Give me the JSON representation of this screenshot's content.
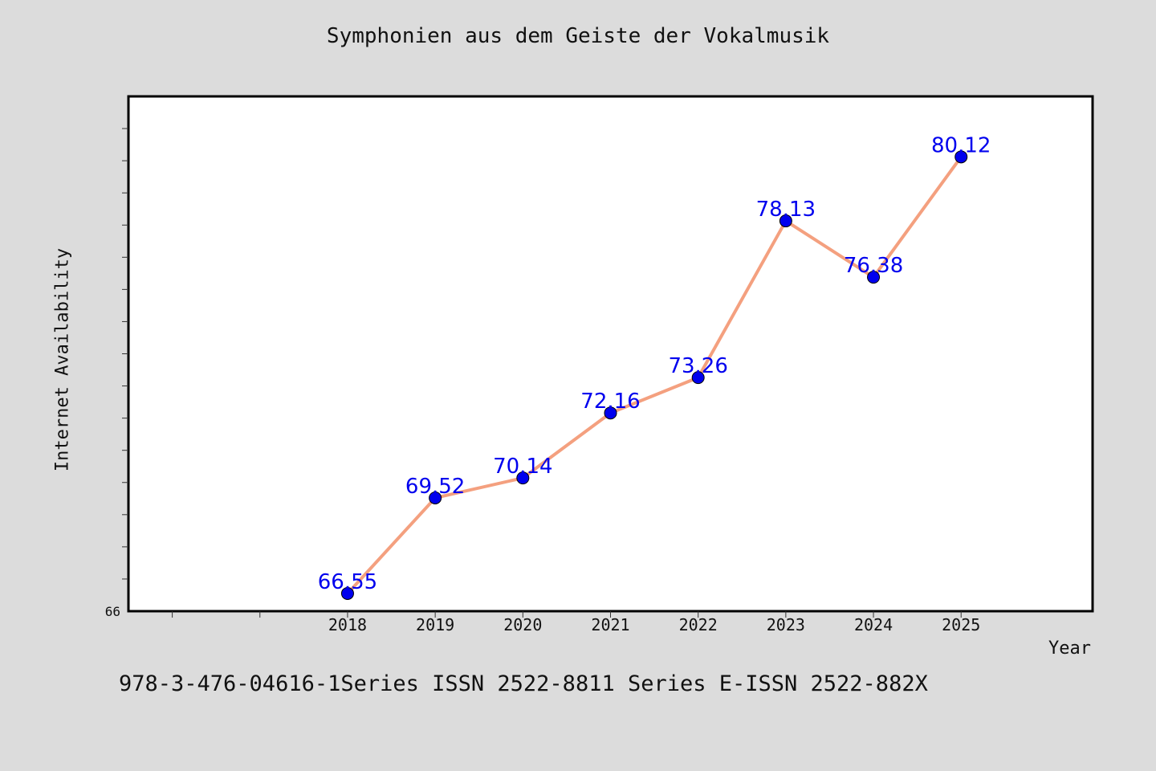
{
  "chart_data": {
    "type": "line",
    "title": "Symphonien aus dem Geiste der Vokalmusik",
    "xlabel": "Year",
    "ylabel": "Internet Availability",
    "x": [
      2018,
      2019,
      2020,
      2021,
      2022,
      2023,
      2024,
      2025
    ],
    "x_tick_labels": [
      "2018",
      "2019",
      "2020",
      "2021",
      "2022",
      "2023",
      "2024",
      "2025"
    ],
    "xlim": [
      2015.5,
      2026.5
    ],
    "y": [
      66.55,
      69.52,
      70.14,
      72.16,
      73.26,
      78.13,
      76.38,
      80.12
    ],
    "y_point_labels": [
      "66.55",
      "69.52",
      "70.14",
      "72.16",
      "73.26",
      "78.13",
      "76.38",
      "80.12"
    ],
    "ylim": [
      66,
      82
    ],
    "y_tick_labels": [
      "66"
    ],
    "grid": false,
    "line_color": "#f4a07f",
    "marker_color": "#0000ee",
    "label_color": "#0000ee",
    "plot_background": "#ffffff",
    "page_background": "#dcdcdc"
  },
  "footer_text": "978-3-476-04616-1Series ISSN 2522-8811 Series E-ISSN 2522-882X"
}
